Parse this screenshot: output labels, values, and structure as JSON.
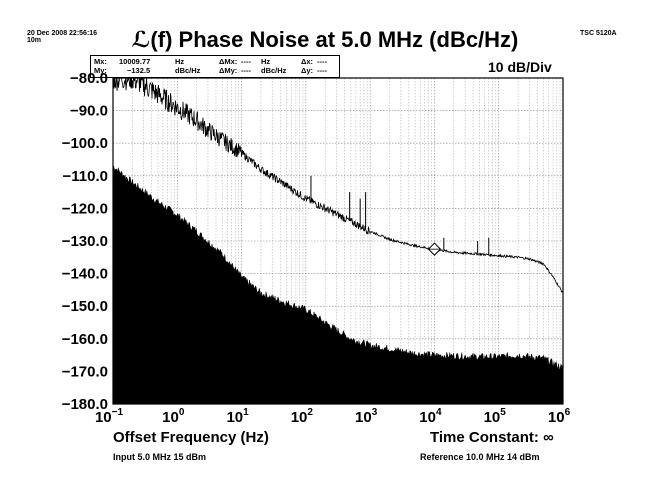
{
  "header": {
    "timestamp": "20 Dec 2008 22:56:16",
    "duration": "10m",
    "instrument": "TSC 5120A",
    "title": "ℒ(f) Phase Noise at 5.0 MHz (dBc/Hz)",
    "scale": "10 dB/Div"
  },
  "marker_readout": {
    "mx_label": "Mx:",
    "mx_value": "10009.77",
    "mx_unit": "Hz",
    "my_label": "My:",
    "my_value": "−132.5",
    "my_unit": "dBc/Hz",
    "dmx_label": "ΔMx:",
    "dmx_value": "----",
    "dmx_unit": "Hz",
    "dmy_label": "ΔMy:",
    "dmy_value": "----",
    "dmy_unit": "dBc/Hz",
    "dx_label": "Δx:",
    "dx_value": "----",
    "dy_label": "Δy:",
    "dy_value": "----"
  },
  "footer": {
    "xlabel": "Offset Frequency (Hz)",
    "time_constant": "Time Constant: ∞",
    "input": "Input 5.0 MHz 15 dBm",
    "reference": "Reference 10.0 MHz 14 dBm"
  },
  "chart_data": {
    "type": "line",
    "x_scale": "log",
    "xlim": [
      0.1,
      1000000
    ],
    "ylim": [
      -180,
      -80
    ],
    "y_ticks": [
      "−80.0",
      "−90.0",
      "−100.0",
      "−110.0",
      "−120.0",
      "−130.0",
      "−140.0",
      "−150.0",
      "−160.0",
      "−170.0",
      "−180.0"
    ],
    "x_ticks": [
      {
        "base": "10",
        "exp": "−1"
      },
      {
        "base": "10",
        "exp": "0"
      },
      {
        "base": "10",
        "exp": "1"
      },
      {
        "base": "10",
        "exp": "2"
      },
      {
        "base": "10",
        "exp": "3"
      },
      {
        "base": "10",
        "exp": "4"
      },
      {
        "base": "10",
        "exp": "5"
      },
      {
        "base": "10",
        "exp": "6"
      }
    ],
    "grid": true,
    "series": [
      {
        "role": "phase noise trace",
        "style": "line",
        "x": [
          0.1,
          0.2,
          0.3,
          0.5,
          1,
          2,
          3,
          5,
          10,
          20,
          50,
          100,
          200,
          500,
          1000,
          2000,
          5000,
          10000,
          20000,
          50000,
          100000,
          200000,
          300000,
          500000,
          700000,
          1000000
        ],
        "y": [
          -80,
          -80,
          -82,
          -85,
          -89,
          -93,
          -96,
          -99,
          -103,
          -108,
          -113,
          -117,
          -120,
          -124,
          -127,
          -129.5,
          -131.5,
          -132.5,
          -133.5,
          -134,
          -134.5,
          -135,
          -135.5,
          -137,
          -141,
          -146
        ]
      },
      {
        "role": "noise floor",
        "style": "filled",
        "x": [
          0.1,
          0.2,
          0.5,
          1,
          2,
          5,
          10,
          20,
          50,
          100,
          200,
          500,
          1000,
          2000,
          5000,
          10000,
          50000,
          100000,
          200000,
          500000,
          800000,
          1000000
        ],
        "y": [
          -107,
          -112,
          -118,
          -122,
          -127,
          -134,
          -141,
          -146,
          -149,
          -151,
          -155,
          -160,
          -162,
          -163,
          -164.5,
          -165,
          -165.5,
          -165.5,
          -165,
          -166,
          -168,
          -169
        ]
      }
    ],
    "spurs": [
      {
        "x": 120,
        "y": -110
      },
      {
        "x": 480,
        "y": -115
      },
      {
        "x": 700,
        "y": -117
      },
      {
        "x": 850,
        "y": -115
      },
      {
        "x": 14000,
        "y": -129
      },
      {
        "x": 47000,
        "y": -130
      },
      {
        "x": 70000,
        "y": -129
      }
    ],
    "marker": {
      "x": 10009.77,
      "y": -132.5
    }
  }
}
